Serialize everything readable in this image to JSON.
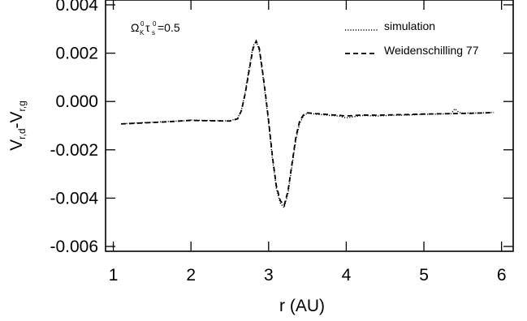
{
  "chart_data": {
    "type": "line",
    "title": "",
    "xlabel": "r (AU)",
    "ylabel_parts": {
      "v1": "V",
      "sub1": "r,d",
      "dash": "-V",
      "sub2": "r,g"
    },
    "annotation": {
      "omega": "Ω",
      "omega_sub": "K",
      "omega_sup": "0",
      "tau": "τ",
      "tau_sub": "s",
      "tau_sup": "0",
      "value": "=0.5"
    },
    "xlim": [
      0.9,
      6.15
    ],
    "ylim": [
      -0.0062,
      0.0042
    ],
    "xticks": [
      1,
      2,
      3,
      4,
      5,
      6
    ],
    "xtick_labels": [
      "1",
      "2",
      "3",
      "4",
      "5",
      "6"
    ],
    "yticks": [
      0.004,
      0.002,
      0.0,
      -0.002,
      -0.004,
      -0.006
    ],
    "ytick_labels": [
      "0.004",
      "0.002",
      "0.000",
      "-0.002",
      "-0.004",
      "-0.006"
    ],
    "legend_position": "top-right",
    "grid": false,
    "series": [
      {
        "name": "simulation",
        "style": "dotted",
        "x": [
          1.1,
          1.3,
          1.5,
          1.7,
          1.9,
          2.0,
          2.1,
          2.3,
          2.5,
          2.6,
          2.65,
          2.7,
          2.75,
          2.8,
          2.84,
          2.88,
          2.92,
          2.96,
          3.0,
          3.05,
          3.1,
          3.15,
          3.2,
          3.25,
          3.3,
          3.35,
          3.4,
          3.45,
          3.5,
          3.6,
          3.7,
          3.8,
          3.9,
          4.0,
          4.2,
          4.4,
          4.6,
          4.8,
          5.0,
          5.2,
          5.35,
          5.4,
          5.45,
          5.5,
          5.7,
          5.9
        ],
        "y": [
          -0.00092,
          -0.00089,
          -0.00086,
          -0.00083,
          -0.0008,
          -0.00077,
          -0.00078,
          -0.00079,
          -0.0008,
          -0.0007,
          -0.00035,
          0.0004,
          0.0014,
          0.0023,
          0.0025,
          0.0021,
          0.0012,
          0.0002,
          -0.0009,
          -0.0024,
          -0.0036,
          -0.0042,
          -0.0044,
          -0.0038,
          -0.0027,
          -0.0016,
          -0.0009,
          -0.0006,
          -0.00048,
          -0.00052,
          -0.00055,
          -0.00058,
          -0.0006,
          -0.00068,
          -0.00058,
          -0.0006,
          -0.00057,
          -0.00056,
          -0.00053,
          -0.00052,
          -0.0005,
          -0.0003,
          -0.00045,
          -0.00048,
          -0.00048,
          -0.00045
        ]
      },
      {
        "name": "Weidenschilling 77",
        "style": "dashed",
        "x": [
          1.1,
          1.3,
          1.5,
          1.7,
          1.9,
          2.0,
          2.1,
          2.3,
          2.5,
          2.6,
          2.65,
          2.7,
          2.75,
          2.8,
          2.84,
          2.88,
          2.92,
          2.96,
          3.0,
          3.05,
          3.1,
          3.15,
          3.2,
          3.25,
          3.3,
          3.35,
          3.4,
          3.45,
          3.5,
          3.6,
          3.7,
          3.8,
          3.9,
          4.0,
          4.2,
          4.4,
          4.6,
          4.8,
          5.0,
          5.2,
          5.4,
          5.6,
          5.8,
          5.9
        ],
        "y": [
          -0.00093,
          -0.0009,
          -0.00087,
          -0.00084,
          -0.0008,
          -0.00078,
          -0.00079,
          -0.0008,
          -0.00081,
          -0.00072,
          -0.00038,
          0.00035,
          0.0013,
          0.0022,
          0.0025,
          0.0022,
          0.0013,
          0.0003,
          -0.0008,
          -0.0023,
          -0.0035,
          -0.0041,
          -0.0043,
          -0.0037,
          -0.0026,
          -0.0015,
          -0.0008,
          -0.00055,
          -0.00047,
          -0.0005,
          -0.00052,
          -0.00055,
          -0.00057,
          -0.0006,
          -0.00056,
          -0.00057,
          -0.00055,
          -0.00054,
          -0.00052,
          -0.00051,
          -0.0005,
          -0.00049,
          -0.00047,
          -0.00046
        ]
      }
    ]
  }
}
